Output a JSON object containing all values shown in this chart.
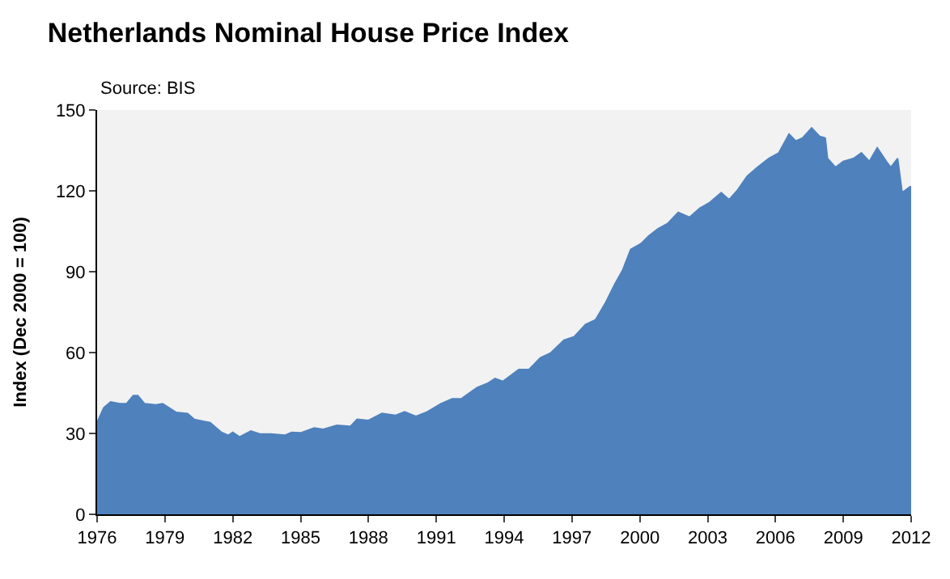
{
  "chart_data": {
    "type": "area",
    "title": "Netherlands Nominal House Price Index",
    "ylabel": "Index (Dec 2000 = 100)",
    "annotations": [
      "Source: BIS"
    ],
    "x": [
      1976.0,
      1976.3,
      1976.6,
      1977.0,
      1977.3,
      1977.6,
      1977.8,
      1978.1,
      1978.6,
      1978.9,
      1979.5,
      1980.0,
      1980.3,
      1981.0,
      1981.5,
      1981.8,
      1982.0,
      1982.3,
      1982.8,
      1983.2,
      1983.7,
      1984.3,
      1984.6,
      1985.0,
      1985.6,
      1986.0,
      1986.6,
      1987.2,
      1987.5,
      1988.0,
      1988.6,
      1989.2,
      1989.6,
      1990.1,
      1990.6,
      1991.2,
      1991.7,
      1992.1,
      1992.8,
      1993.3,
      1993.6,
      1993.95,
      1994.65,
      1995.1,
      1995.6,
      1996.05,
      1996.65,
      1997.1,
      1997.6,
      1998.05,
      1998.5,
      1998.9,
      1999.25,
      1999.6,
      2000.05,
      2000.4,
      2000.8,
      2001.25,
      2001.7,
      2002.2,
      2002.65,
      2003.1,
      2003.6,
      2003.95,
      2004.3,
      2004.75,
      2005.2,
      2005.7,
      2006.15,
      2006.6,
      2006.9,
      2007.2,
      2007.6,
      2007.95,
      2008.2,
      2008.3,
      2008.65,
      2009.0,
      2009.45,
      2009.8,
      2010.15,
      2010.5,
      2010.9,
      2011.1,
      2011.4,
      2011.6,
      2011.95,
      2012.0
    ],
    "values": [
      34,
      39.6,
      41.7,
      41,
      41,
      44,
      44,
      41,
      40.6,
      41,
      37.8,
      37.4,
      35.2,
      34,
      30.4,
      29.3,
      30.4,
      28.7,
      30.9,
      29.8,
      29.8,
      29.3,
      30.4,
      30.2,
      32,
      31.5,
      33,
      32.6,
      35.2,
      34.8,
      37.4,
      36.7,
      38,
      36.3,
      38,
      41,
      42.8,
      42.8,
      47,
      48.7,
      50.4,
      49.3,
      53.7,
      53.7,
      58,
      59.8,
      64.6,
      65.9,
      70.4,
      72.2,
      78.7,
      85.4,
      90.7,
      98.3,
      100.4,
      103.3,
      105.9,
      108,
      112,
      110.2,
      113.5,
      115.7,
      119.3,
      116.7,
      120,
      125.4,
      128.7,
      132,
      134.1,
      141,
      138.5,
      139.6,
      143.3,
      140.2,
      139.6,
      132,
      128.7,
      130.9,
      132,
      134.1,
      130.9,
      135.9,
      130.9,
      128.7,
      132,
      119.3,
      121.5,
      121.5
    ],
    "color": "#4f81bd",
    "xlim": [
      1976,
      2012
    ],
    "xticks": [
      1976,
      1979,
      1982,
      1985,
      1988,
      1991,
      1994,
      1997,
      2000,
      2003,
      2006,
      2009,
      2012
    ],
    "ylim": [
      0,
      150
    ],
    "yticks": [
      0,
      30,
      60,
      90,
      120,
      150
    ],
    "grid": false
  }
}
